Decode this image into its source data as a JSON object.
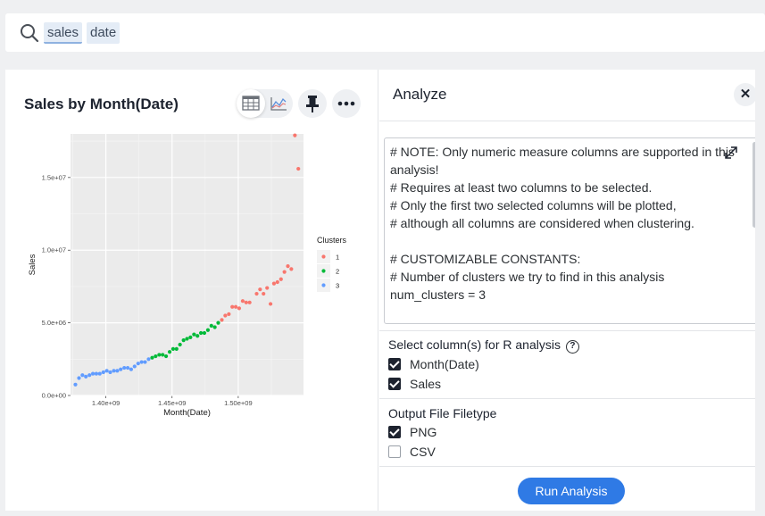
{
  "search": {
    "tokens": [
      "sales",
      "date"
    ]
  },
  "chart_card": {
    "title": "Sales by Month(Date)",
    "view_toggle": [
      "table-icon",
      "line-chart-icon"
    ],
    "pin_icon": "pin-icon",
    "more_icon": "more-dots-icon"
  },
  "chart_data": {
    "type": "scatter",
    "xlabel": "Month(Date)",
    "ylabel": "Sales",
    "xlim": [
      1373300000.0,
      1549300000.0
    ],
    "ylim": [
      0,
      18000000.0
    ],
    "x_ticks": [
      1400000000.0,
      1450000000.0,
      1500000000.0
    ],
    "x_tick_labels": [
      "1.40e+09",
      "1.45e+09",
      "1.50e+09"
    ],
    "y_ticks": [
      0,
      5000000.0,
      10000000.0,
      15000000.0
    ],
    "y_tick_labels": [
      "0.0e+00",
      "5.0e+06",
      "1.0e+07",
      "1.5e+07"
    ],
    "grid": true,
    "legend_title": "Clusters",
    "legend_placement": "right",
    "series": [
      {
        "name": "1",
        "color": "#f8766d",
        "x": [
          1487600000.0,
          1490200000.0,
          1492900000.0,
          1495500000.0,
          1498100000.0,
          1500700000.0,
          1503400000.0,
          1506000000.0,
          1508600000.0,
          1513900000.0,
          1516500000.0,
          1519100000.0,
          1521800000.0,
          1524400000.0,
          1527000000.0,
          1529600000.0,
          1532300000.0,
          1534900000.0,
          1537500000.0,
          1540100000.0,
          1542800000.0
        ],
        "y": [
          5200000.0,
          5500000.0,
          5600000.0,
          6100000.0,
          6100000.0,
          6000000.0,
          6500000.0,
          6400000.0,
          6400000.0,
          7000000.0,
          7300000.0,
          7000000.0,
          7400000.0,
          6300000.0,
          7700000.0,
          7800000.0,
          8000000.0,
          8500000.0,
          8900000.0,
          8700000.0,
          17900000.0
        ]
      },
      {
        "name": "1",
        "color": "#f8766d",
        "x": [
          1545400000.0
        ],
        "y": [
          15600000.0
        ]
      },
      {
        "name": "2",
        "color": "#00ba38",
        "x": [
          1435000000.0,
          1437600000.0,
          1440300000.0,
          1442900000.0,
          1445500000.0,
          1448200000.0,
          1450800000.0,
          1453400000.0,
          1456000000.0,
          1458700000.0,
          1461300000.0,
          1463900000.0,
          1466600000.0,
          1469200000.0,
          1471800000.0,
          1474400000.0,
          1477100000.0,
          1479700000.0,
          1482300000.0,
          1484900000.0
        ],
        "y": [
          2600000.0,
          2700000.0,
          2800000.0,
          2800000.0,
          2700000.0,
          3000000.0,
          3200000.0,
          3200000.0,
          3500000.0,
          3800000.0,
          3900000.0,
          4000000.0,
          4200000.0,
          4100000.0,
          4300000.0,
          4300000.0,
          4500000.0,
          4800000.0,
          4700000.0,
          5000000.0
        ]
      },
      {
        "name": "3",
        "color": "#619cff",
        "x": [
          1377000000.0,
          1379700000.0,
          1382300000.0,
          1384900000.0,
          1387600000.0,
          1390200000.0,
          1392800000.0,
          1395400000.0,
          1398100000.0,
          1400700000.0,
          1403300000.0,
          1406000000.0,
          1408600000.0,
          1411200000.0,
          1413900000.0,
          1416500000.0,
          1419100000.0,
          1421700000.0,
          1424400000.0,
          1427000000.0,
          1429600000.0,
          1432300000.0
        ],
        "y": [
          750000.0,
          1200000.0,
          1400000.0,
          1300000.0,
          1400000.0,
          1500000.0,
          1500000.0,
          1500000.0,
          1600000.0,
          1700000.0,
          1600000.0,
          1700000.0,
          1700000.0,
          1800000.0,
          1900000.0,
          1900000.0,
          1800000.0,
          2000000.0,
          2200000.0,
          2300000.0,
          2300000.0,
          2500000.0
        ]
      }
    ],
    "legend": [
      {
        "label": "1",
        "color": "#f8766d"
      },
      {
        "label": "2",
        "color": "#00ba38"
      },
      {
        "label": "3",
        "color": "#619cff"
      }
    ]
  },
  "analyze": {
    "title": "Analyze",
    "close_icon": "close-icon",
    "close_glyph": "✕",
    "code_lines": [
      "# NOTE: Only numeric measure columns are supported in this",
      "analysis!",
      "# Requires at least two columns to be selected.",
      "# Only the first two selected columns will be plotted,",
      "# although all columns are considered when clustering.",
      "",
      "# CUSTOMIZABLE CONSTANTS:",
      "# Number of clusters we try to find in this analysis",
      "num_clusters = 3"
    ],
    "columns_label": "Select column(s) for R analysis",
    "help_glyph": "?",
    "columns": [
      {
        "label": "Month(Date)",
        "checked": true
      },
      {
        "label": "Sales",
        "checked": true
      }
    ],
    "filetype_label": "Output File Filetype",
    "filetypes": [
      {
        "label": "PNG",
        "checked": true
      },
      {
        "label": "CSV",
        "checked": false
      }
    ],
    "run_label": "Run Analysis"
  }
}
